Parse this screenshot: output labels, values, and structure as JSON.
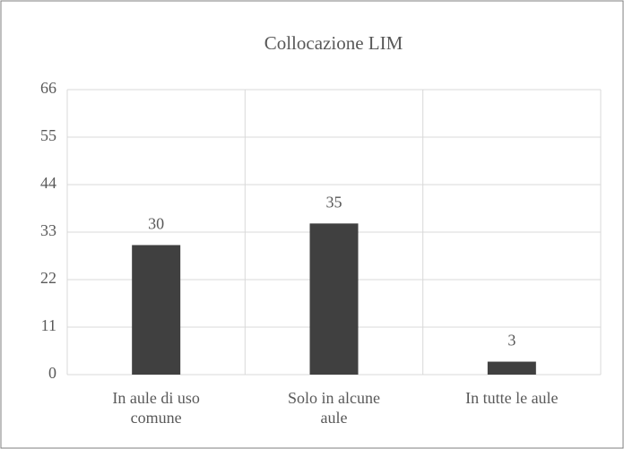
{
  "chart_data": {
    "type": "bar",
    "title": "Collocazione LIM",
    "categories": [
      "In aule di uso comune",
      "Solo in alcune aule",
      "In tutte le aule"
    ],
    "values": [
      30,
      35,
      3
    ],
    "color": "#404040",
    "ylim": [
      0,
      66
    ],
    "yticks": [
      0,
      11,
      22,
      33,
      44,
      55,
      66
    ],
    "grid": true
  }
}
